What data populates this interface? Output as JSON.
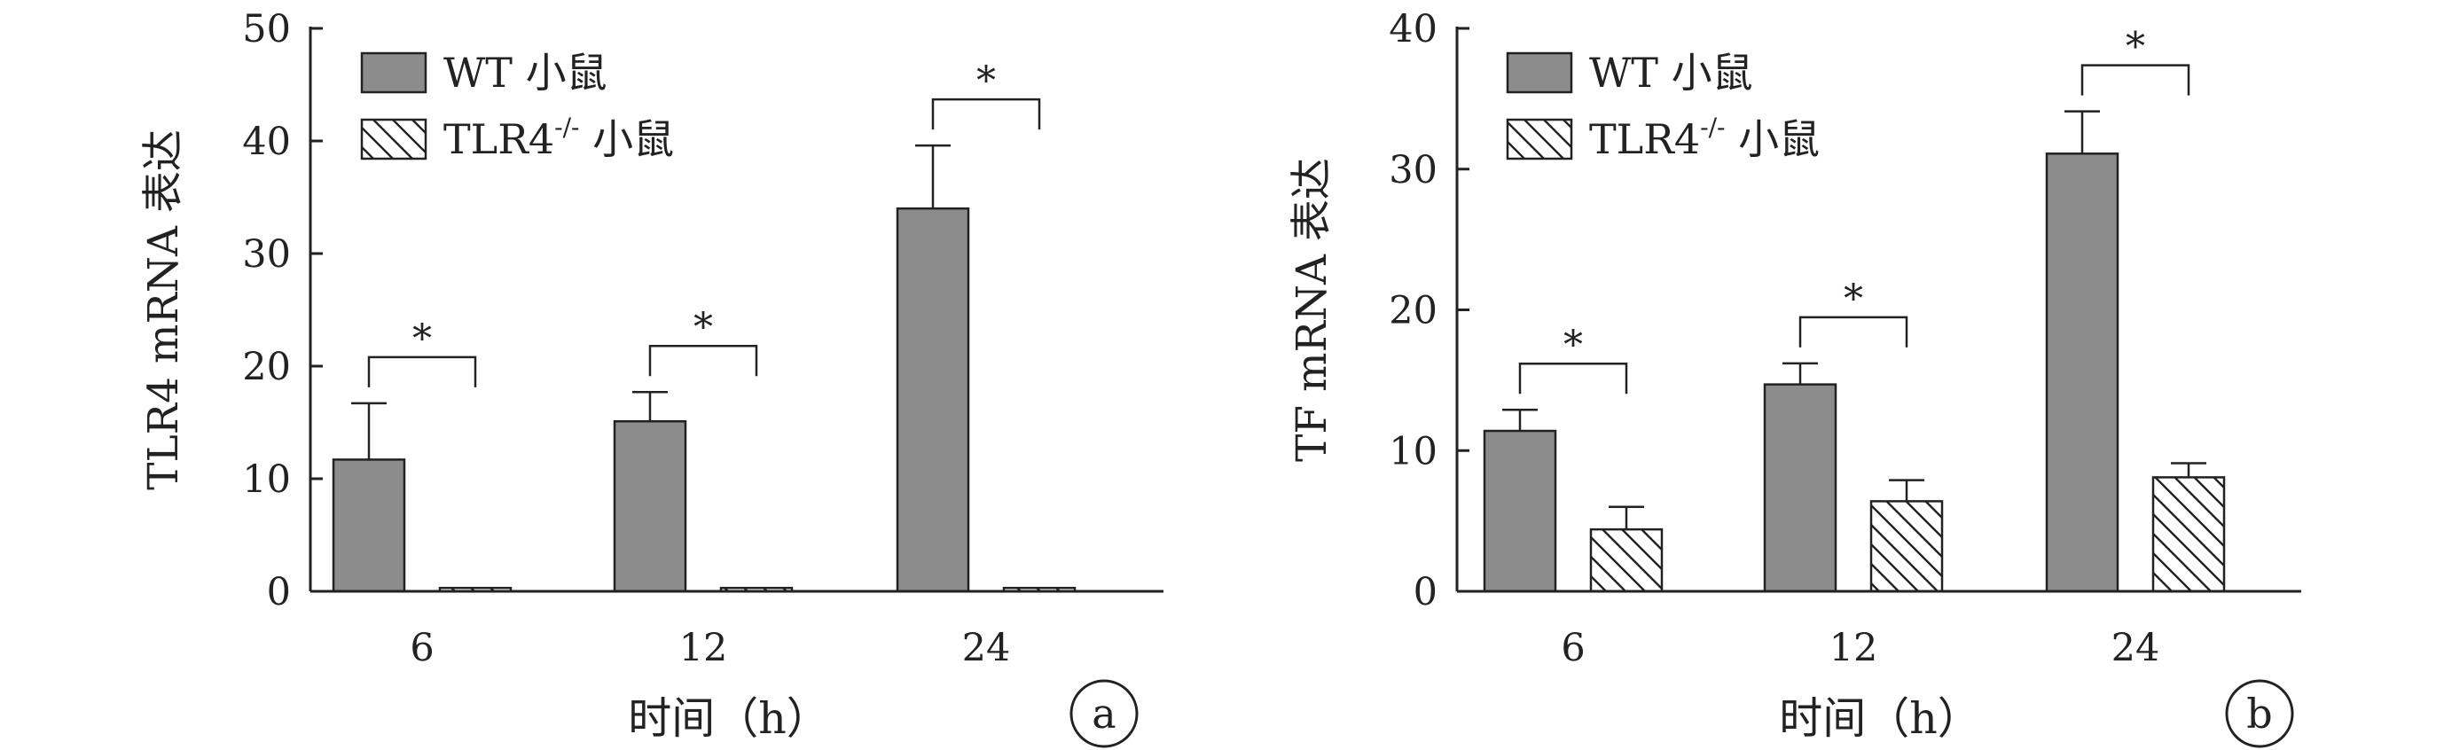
{
  "chart_data": [
    {
      "type": "bar",
      "panel_label": "a",
      "categories": [
        "6",
        "12",
        "24"
      ],
      "series": [
        {
          "name": "WT 小鼠",
          "values": [
            11.7,
            15.1,
            34.0
          ],
          "errors": [
            5.0,
            2.6,
            5.6
          ]
        },
        {
          "name": "TLR4-/- 小鼠",
          "values": [
            0.3,
            0.3,
            0.3
          ],
          "errors": [
            0,
            0,
            0
          ]
        }
      ],
      "xlabel": "时间（h）",
      "ylabel": "TLR4 mRNA 表达",
      "ylim": [
        0,
        50
      ],
      "yticks": [
        "0",
        "10",
        "20",
        "30",
        "40",
        "50"
      ],
      "significance": [
        "*",
        "*",
        "*"
      ],
      "legend": {
        "position": "top-left",
        "entries": [
          {
            "text": "WT 小鼠",
            "pattern": "solid"
          },
          {
            "main": "TLR4",
            "sup": "-/-",
            "suffix": " 小鼠",
            "pattern": "hatch"
          }
        ]
      },
      "grid": false
    },
    {
      "type": "bar",
      "panel_label": "b",
      "categories": [
        "6",
        "12",
        "24"
      ],
      "series": [
        {
          "name": "WT 小鼠",
          "values": [
            11.4,
            14.7,
            31.1
          ],
          "errors": [
            1.5,
            1.5,
            3.0
          ]
        },
        {
          "name": "TLR4-/- 小鼠",
          "values": [
            4.4,
            6.4,
            8.1
          ],
          "errors": [
            1.6,
            1.5,
            1.0
          ]
        }
      ],
      "xlabel": "时间（h）",
      "ylabel": "TF mRNA 表达",
      "ylim": [
        0,
        40
      ],
      "yticks": [
        "0",
        "10",
        "20",
        "30",
        "40"
      ],
      "significance": [
        "*",
        "*",
        "*"
      ],
      "legend": {
        "position": "top-left",
        "entries": [
          {
            "text": "WT 小鼠",
            "pattern": "solid"
          },
          {
            "main": "TLR4",
            "sup": "-/-",
            "suffix": " 小鼠",
            "pattern": "hatch"
          }
        ]
      },
      "grid": false
    }
  ],
  "colors": {
    "wt_fill": "#8c8c8c",
    "axis": "#222222",
    "hatch": "#222222"
  }
}
